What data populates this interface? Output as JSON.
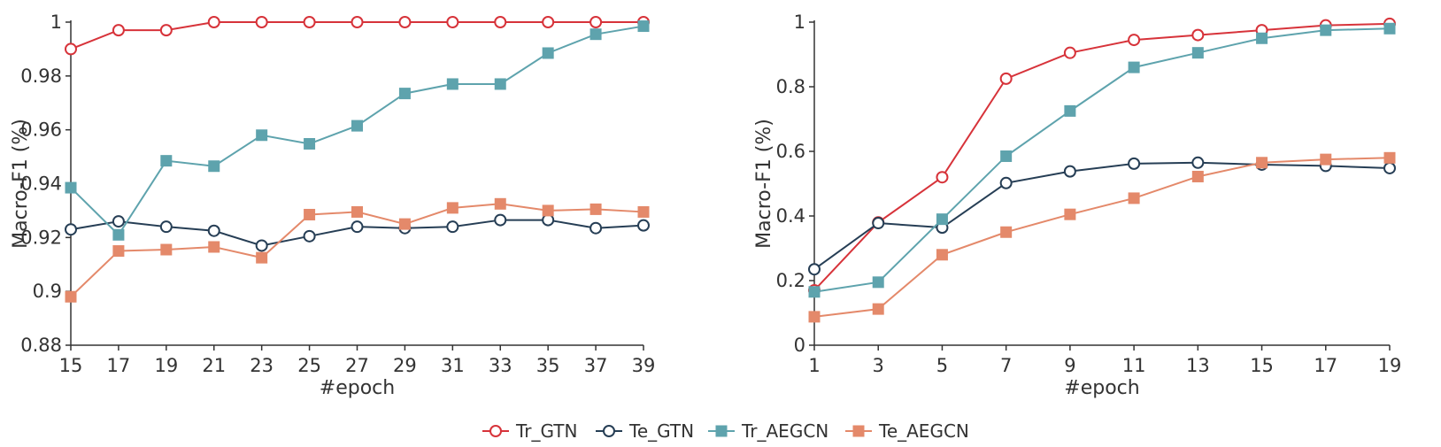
{
  "legend": [
    {
      "key": "tr_gtn",
      "label": "Tr_GTN",
      "color": "#d7333a",
      "marker": "circle",
      "fill": "#ffffff"
    },
    {
      "key": "te_gtn",
      "label": "Te_GTN",
      "color": "#263e55",
      "marker": "circle",
      "fill": "#ffffff"
    },
    {
      "key": "tr_aegcn",
      "label": "Tr_AEGCN",
      "color": "#5ea3ad",
      "marker": "square",
      "fill": "#5ea3ad"
    },
    {
      "key": "te_aegcn",
      "label": "Te_AEGCN",
      "color": "#e4896a",
      "marker": "square",
      "fill": "#e4896a"
    }
  ],
  "chart_data": [
    {
      "type": "line",
      "xlabel": "#epoch",
      "ylabel": "Macro-F1 (%)",
      "x": [
        15,
        17,
        19,
        21,
        23,
        25,
        27,
        29,
        31,
        33,
        35,
        37,
        39
      ],
      "xlim": [
        15,
        39
      ],
      "ylim": [
        0.88,
        1.0
      ],
      "yticks": [
        0.88,
        0.9,
        0.92,
        0.94,
        0.96,
        0.98,
        1
      ],
      "ytick_labels": [
        "0.88",
        "0.9",
        "0.92",
        "0.94",
        "0.96",
        "0.98",
        "1"
      ],
      "grid": false,
      "series": [
        {
          "key": "tr_gtn",
          "name": "Tr_GTN",
          "values": [
            0.99,
            0.997,
            0.997,
            1.0,
            1.0,
            1.0,
            1.0,
            1.0,
            1.0,
            1.0,
            1.0,
            1.0,
            1.0
          ]
        },
        {
          "key": "te_gtn",
          "name": "Te_GTN",
          "values": [
            0.923,
            0.926,
            0.924,
            0.9225,
            0.917,
            0.9205,
            0.924,
            0.9235,
            0.924,
            0.9265,
            0.9265,
            0.9235,
            0.9245
          ]
        },
        {
          "key": "tr_aegcn",
          "name": "Tr_AEGCN",
          "values": [
            0.9385,
            0.921,
            0.9485,
            0.9465,
            0.958,
            0.9548,
            0.9615,
            0.9735,
            0.977,
            0.977,
            0.9885,
            0.9955,
            0.9985
          ]
        },
        {
          "key": "te_aegcn",
          "name": "Te_AEGCN",
          "values": [
            0.898,
            0.915,
            0.9155,
            0.9165,
            0.9125,
            0.9285,
            0.9295,
            0.925,
            0.931,
            0.9325,
            0.93,
            0.9305,
            0.9295
          ]
        }
      ]
    },
    {
      "type": "line",
      "xlabel": "#epoch",
      "ylabel": "Macro-F1 (%)",
      "x": [
        1,
        3,
        5,
        7,
        9,
        11,
        13,
        15,
        17,
        19
      ],
      "xlim": [
        1,
        19
      ],
      "ylim": [
        0,
        1
      ],
      "yticks": [
        0,
        0.2,
        0.4,
        0.6,
        0.8,
        1
      ],
      "ytick_labels": [
        "0",
        "0.2",
        "0.4",
        "0.6",
        "0.8",
        "1"
      ],
      "grid": false,
      "series": [
        {
          "key": "tr_gtn",
          "name": "Tr_GTN",
          "values": [
            0.17,
            0.38,
            0.52,
            0.825,
            0.905,
            0.945,
            0.96,
            0.975,
            0.99,
            0.995
          ]
        },
        {
          "key": "te_gtn",
          "name": "Te_GTN",
          "values": [
            0.235,
            0.378,
            0.364,
            0.502,
            0.538,
            0.562,
            0.565,
            0.559,
            0.555,
            0.548
          ]
        },
        {
          "key": "tr_aegcn",
          "name": "Tr_AEGCN",
          "values": [
            0.165,
            0.195,
            0.39,
            0.585,
            0.725,
            0.86,
            0.905,
            0.95,
            0.975,
            0.98
          ]
        },
        {
          "key": "te_aegcn",
          "name": "Te_AEGCN",
          "values": [
            0.088,
            0.112,
            0.28,
            0.35,
            0.405,
            0.455,
            0.522,
            0.565,
            0.575,
            0.58
          ]
        }
      ]
    }
  ]
}
